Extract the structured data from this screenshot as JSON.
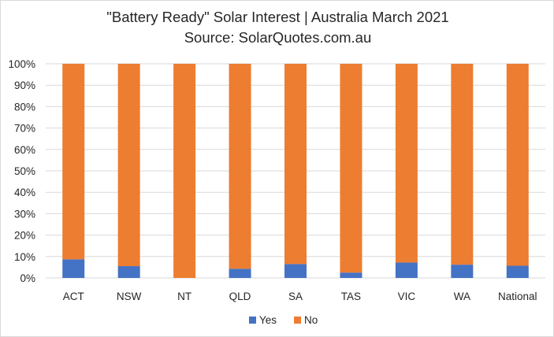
{
  "chart_data": {
    "type": "bar",
    "stacked": true,
    "title": "\"Battery Ready\" Solar Interest  |  Australia March 2021",
    "subtitle": "Source: SolarQuotes.com.au",
    "categories": [
      "ACT",
      "NSW",
      "NT",
      "QLD",
      "SA",
      "TAS",
      "VIC",
      "WA",
      "National"
    ],
    "series": [
      {
        "name": "Yes",
        "color": "#4472C4",
        "values": [
          0.087,
          0.055,
          0.0,
          0.043,
          0.065,
          0.025,
          0.072,
          0.062,
          0.057
        ]
      },
      {
        "name": "No",
        "color": "#ED7D31",
        "values": [
          0.913,
          0.945,
          1.0,
          0.957,
          0.935,
          0.975,
          0.928,
          0.938,
          0.943
        ]
      }
    ],
    "y_ticks": [
      "0%",
      "10%",
      "20%",
      "30%",
      "40%",
      "50%",
      "60%",
      "70%",
      "80%",
      "90%",
      "100%"
    ],
    "ylim": [
      0,
      1
    ],
    "grid": true,
    "legend_position": "bottom"
  }
}
